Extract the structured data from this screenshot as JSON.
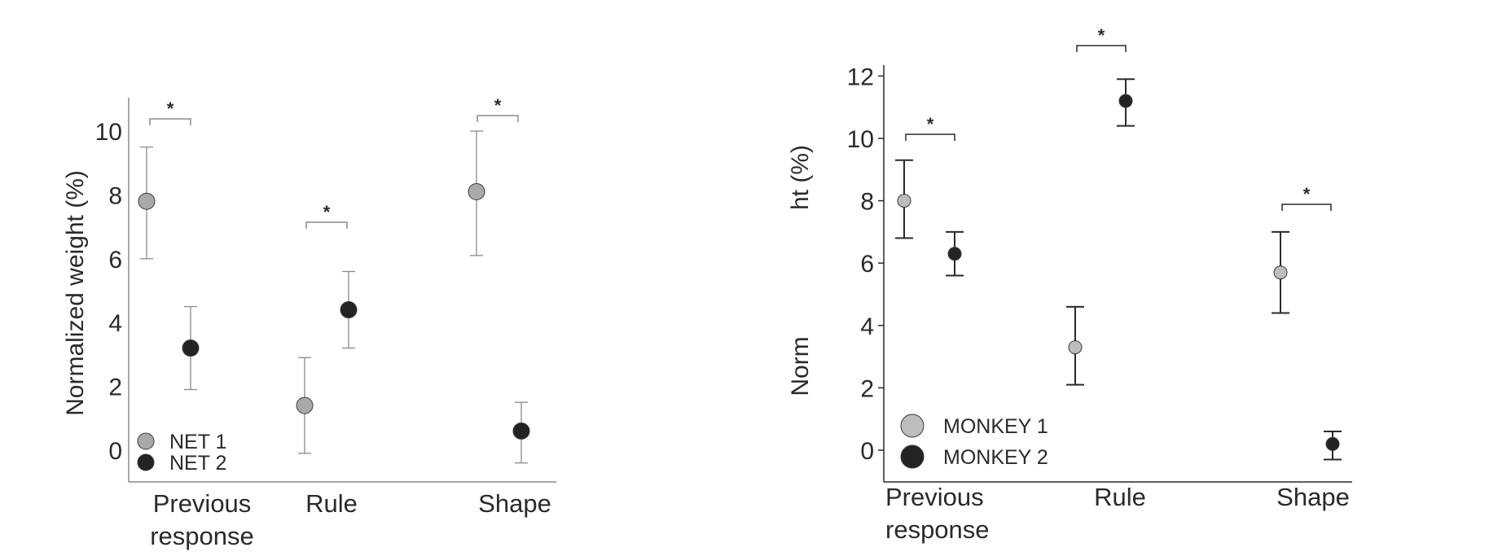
{
  "chart_data": [
    {
      "type": "scatter",
      "categories": [
        "Previous response",
        "Rule",
        "Shape"
      ],
      "category_lines": [
        [
          "Previous",
          "response"
        ],
        [
          "Rule"
        ],
        [
          "Shape"
        ]
      ],
      "ylabel": "Normalized weight (%)",
      "yticks": [
        "0",
        "2",
        "4",
        "6",
        "8",
        "10"
      ],
      "ylim": [
        -1,
        11
      ],
      "series": [
        {
          "name": "NET 1",
          "color": "#a9a9a9",
          "values": [
            7.8,
            1.4,
            8.1
          ],
          "err_low": [
            6.0,
            -0.1,
            6.1
          ],
          "err_high": [
            9.5,
            2.9,
            10.0
          ]
        },
        {
          "name": "NET 2",
          "color": "#232323",
          "values": [
            3.2,
            4.4,
            0.6
          ],
          "err_low": [
            1.9,
            3.2,
            -0.4
          ],
          "err_high": [
            4.5,
            5.6,
            1.5
          ]
        }
      ],
      "significance": [
        "*",
        "*",
        "*"
      ],
      "legend_position": "bottom-left",
      "error_bar_color": "#8a8a8a"
    },
    {
      "type": "scatter",
      "categories": [
        "Previous response",
        "Rule",
        "Shape"
      ],
      "category_lines": [
        [
          "Previous",
          "response"
        ],
        [
          "Rule"
        ],
        [
          "Shape"
        ]
      ],
      "ylabel_parts": [
        "Norm",
        "ht (%)"
      ],
      "yticks": [
        "0",
        "2",
        "4",
        "6",
        "8",
        "10",
        "12"
      ],
      "ylim": [
        -1,
        12.5
      ],
      "series": [
        {
          "name": "MONKEY 1",
          "color": "#bdbdbd",
          "values": [
            8.0,
            3.3,
            5.7
          ],
          "err_low": [
            6.8,
            2.1,
            4.4
          ],
          "err_high": [
            9.3,
            4.6,
            7.0
          ]
        },
        {
          "name": "MONKEY 2",
          "color": "#232323",
          "values": [
            6.3,
            11.2,
            0.2
          ],
          "err_low": [
            5.6,
            10.4,
            -0.3
          ],
          "err_high": [
            7.0,
            11.9,
            0.6
          ]
        }
      ],
      "significance": [
        "*",
        "*",
        "*"
      ],
      "legend_position": "bottom-left",
      "error_bar_color": "#2a2a2a"
    }
  ]
}
